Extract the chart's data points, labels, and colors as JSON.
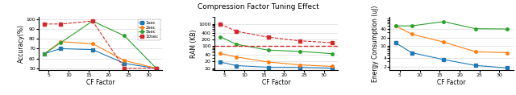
{
  "title": "Compression Factor Tuning Effect",
  "cf_x": [
    4,
    8,
    16,
    24,
    32
  ],
  "acc_1sec": [
    65,
    70,
    69,
    55,
    50
  ],
  "acc_2sec": [
    65,
    77,
    75,
    58,
    50
  ],
  "acc_5sec": [
    65,
    76,
    98,
    83,
    50
  ],
  "acc_10sec": [
    95,
    95,
    98,
    50,
    50
  ],
  "ram_1sec": [
    19,
    13,
    11,
    11,
    10
  ],
  "ram_2sec": [
    46,
    32,
    19,
    14,
    12
  ],
  "ram_5sec": [
    260,
    120,
    65,
    57,
    45
  ],
  "ram_10sec": [
    980,
    460,
    250,
    170,
    140
  ],
  "ram_threshold": 100,
  "energy_1sec": [
    13,
    6,
    3.5,
    2.2,
    1.8
  ],
  "energy_2sec": [
    50,
    26,
    14,
    6.5,
    6
  ],
  "energy_5sec": [
    50,
    50,
    70,
    40,
    39
  ],
  "colors": {
    "1sec": "#1f77b4",
    "2sec": "#ff7f0e",
    "5sec": "#2ca02c",
    "10sec": "#d62728"
  },
  "xlabel": "CF Factor",
  "ylabel_acc": "Accuracy(%)",
  "ylabel_ram": "RAM (KB)",
  "ylabel_energy": "Energy Consumption (uJ)"
}
